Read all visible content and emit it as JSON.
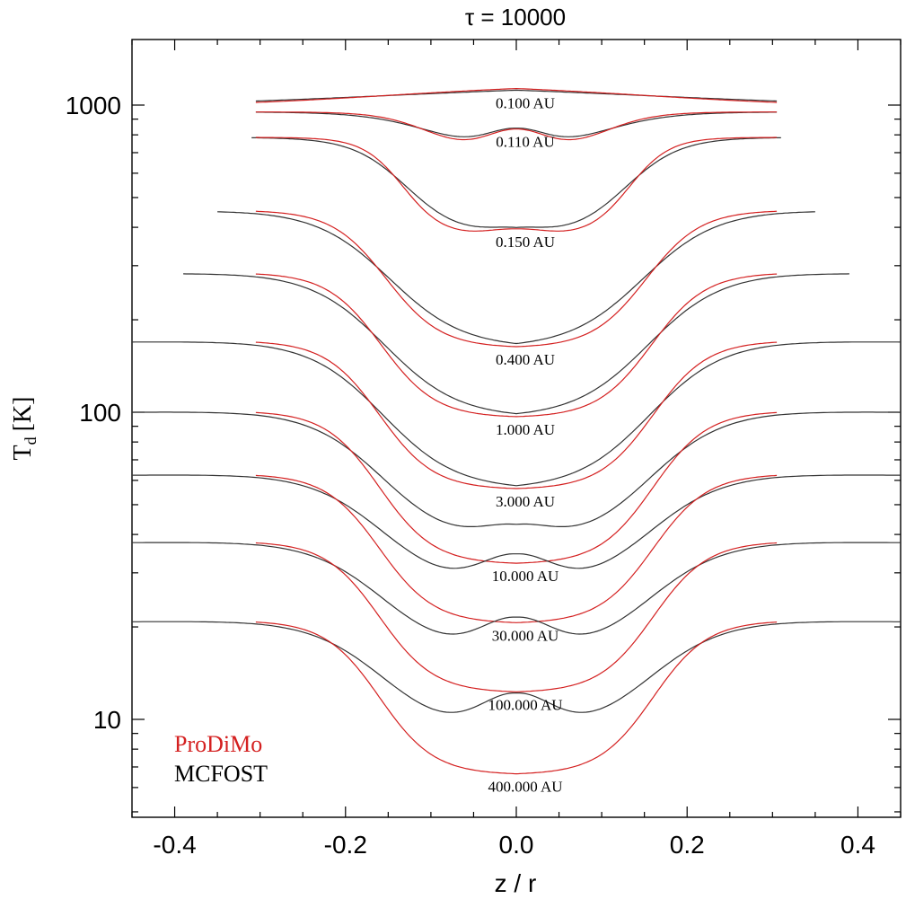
{
  "chart_data": {
    "type": "line",
    "title": "τ = 10000",
    "xlabel": "z / r",
    "ylabel_main": "T",
    "ylabel_sub": "d",
    "ylabel_unit": "[K]",
    "xlim": [
      -0.45,
      0.45
    ],
    "ylim": [
      5,
      1800
    ],
    "yscale": "log",
    "x_ticks": [
      -0.4,
      -0.2,
      0.0,
      0.2,
      0.4
    ],
    "x_tick_labels": [
      "-0.4",
      "-0.2",
      "0.0",
      "0.2",
      "0.4"
    ],
    "y_ticks": [
      10,
      100,
      1000
    ],
    "y_tick_labels": [
      "10",
      "100",
      "1000"
    ],
    "grid": false,
    "legend_position": "bottom-left",
    "legend": [
      {
        "name": "ProDiMo",
        "color": "#d42020"
      },
      {
        "name": "MCFOST",
        "color": "#000000"
      }
    ],
    "colors": {
      "prodimo": "#d42020",
      "mcfost": "#333333",
      "axes": "#000000"
    },
    "series": [
      {
        "label": "0.100 AU",
        "outer": 980,
        "inner": 1180,
        "xmax_red": 0.305,
        "xmax_black": 0.305,
        "x_mid": 0.15,
        "width": 0.12,
        "bump": 0,
        "black_extra": 0
      },
      {
        "label": "0.110 AU",
        "outer": 950,
        "inner": 705,
        "xmax_red": 0.305,
        "xmax_black": 0.305,
        "x_mid": 0.102,
        "width": 0.03,
        "bump": 1.18,
        "black_extra": 0
      },
      {
        "label": "0.150 AU",
        "outer": 785,
        "inner": 372,
        "xmax_red": 0.305,
        "xmax_black": 0.31,
        "x_mid": 0.132,
        "width": 0.024,
        "bump": 1.06,
        "black_extra": 0
      },
      {
        "label": "0.400 AU",
        "outer": 455,
        "inner": 162,
        "xmax_red": 0.305,
        "xmax_black": 0.35,
        "x_mid": 0.152,
        "width": 0.032,
        "bump": 1.0,
        "black_extra": 0
      },
      {
        "label": "1.000 AU",
        "outer": 285,
        "inner": 96,
        "xmax_red": 0.305,
        "xmax_black": 0.39,
        "x_mid": 0.158,
        "width": 0.032,
        "bump": 1.0,
        "black_extra": 0
      },
      {
        "label": "3.000 AU",
        "outer": 171,
        "inner": 56,
        "xmax_red": 0.305,
        "xmax_black": 0.45,
        "x_mid": 0.16,
        "width": 0.032,
        "bump": 1.0,
        "black_extra": 0
      },
      {
        "label": "10.000 AU",
        "outer": 101,
        "inner": 32,
        "xmax_red": 0.305,
        "xmax_black": 0.45,
        "x_mid": 0.16,
        "width": 0.032,
        "bump": 1.0,
        "black_extra": 0.12
      },
      {
        "label": "30.000 AU",
        "outer": 63,
        "inner": 20.5,
        "xmax_red": 0.305,
        "xmax_black": 0.45,
        "x_mid": 0.16,
        "width": 0.032,
        "bump": 1.0,
        "black_extra": 0.22
      },
      {
        "label": "100.000 AU",
        "outer": 38,
        "inner": 12.2,
        "xmax_red": 0.305,
        "xmax_black": 0.45,
        "x_mid": 0.16,
        "width": 0.032,
        "bump": 1.0,
        "black_extra": 0.24
      },
      {
        "label": "400.000 AU",
        "outer": 21,
        "inner": 6.6,
        "xmax_red": 0.305,
        "xmax_black": 0.45,
        "x_mid": 0.16,
        "width": 0.032,
        "bump": 1.0,
        "black_extra": 0.26
      }
    ]
  }
}
